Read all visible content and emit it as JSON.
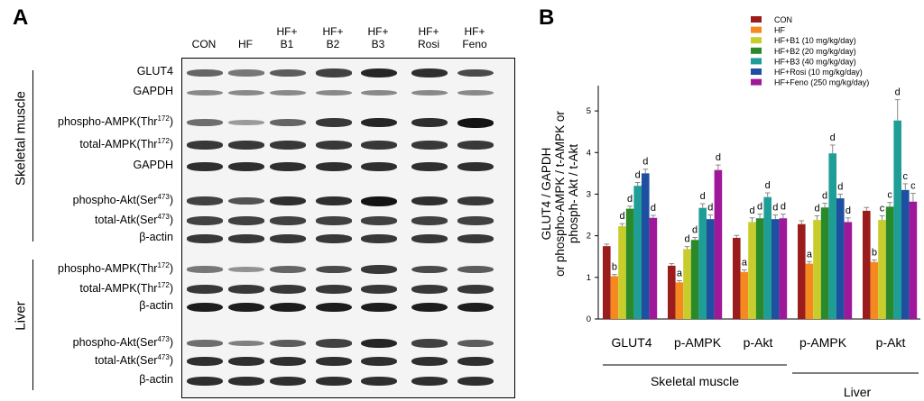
{
  "panel_a": {
    "letter": "A",
    "lanes": [
      {
        "line1": "CON",
        "line2": ""
      },
      {
        "line1": "HF",
        "line2": ""
      },
      {
        "line1": "HF+",
        "line2": "B1"
      },
      {
        "line1": "HF+",
        "line2": "B2"
      },
      {
        "line1": "HF+",
        "line2": "B3"
      },
      {
        "line1": "HF+",
        "line2": "Rosi"
      },
      {
        "line1": "HF+",
        "line2": "Feno"
      }
    ],
    "tissues": [
      "Skeletal muscle",
      "Liver"
    ],
    "rows": [
      {
        "name": "GLUT4",
        "sup": "",
        "tail": "",
        "intensity": [
          0.55,
          0.45,
          0.6,
          0.75,
          0.9,
          0.85,
          0.7
        ]
      },
      {
        "name": "GAPDH",
        "sup": "",
        "tail": "",
        "intensity": [
          0.35,
          0.35,
          0.35,
          0.35,
          0.35,
          0.35,
          0.35
        ]
      },
      {
        "name": "phospho-AMPK(Thr",
        "sup": "172",
        "tail": ")",
        "intensity": [
          0.5,
          0.25,
          0.55,
          0.8,
          0.9,
          0.85,
          1.0
        ]
      },
      {
        "name": "total-AMPK(Thr",
        "sup": "172",
        "tail": ")",
        "intensity": [
          0.8,
          0.8,
          0.8,
          0.8,
          0.8,
          0.8,
          0.8
        ]
      },
      {
        "name": "GAPDH",
        "sup": "",
        "tail": "",
        "intensity": [
          0.85,
          0.85,
          0.85,
          0.85,
          0.85,
          0.85,
          0.85
        ]
      },
      {
        "name": "phospho-Akt(Ser",
        "sup": "473",
        "tail": ")",
        "intensity": [
          0.75,
          0.65,
          0.85,
          0.85,
          1.0,
          0.85,
          0.8
        ]
      },
      {
        "name": "total-Atk(Ser",
        "sup": "473",
        "tail": ")",
        "intensity": [
          0.75,
          0.75,
          0.75,
          0.75,
          0.75,
          0.75,
          0.75
        ]
      },
      {
        "name": "β-actin",
        "sup": "",
        "tail": "",
        "intensity": [
          0.8,
          0.8,
          0.8,
          0.8,
          0.8,
          0.8,
          0.8
        ]
      },
      {
        "name": "phospho-AMPK(Thr",
        "sup": "172",
        "tail": ")",
        "intensity": [
          0.45,
          0.3,
          0.55,
          0.7,
          0.8,
          0.7,
          0.6
        ]
      },
      {
        "name": "total-AMPK(Thr",
        "sup": "172",
        "tail": ")",
        "intensity": [
          0.8,
          0.8,
          0.8,
          0.8,
          0.8,
          0.8,
          0.8
        ]
      },
      {
        "name": "β-actin",
        "sup": "",
        "tail": "",
        "intensity": [
          0.95,
          0.95,
          0.95,
          0.95,
          0.95,
          0.95,
          0.95
        ]
      },
      {
        "name": "phospho-Akt(Ser",
        "sup": "473",
        "tail": ")",
        "intensity": [
          0.5,
          0.4,
          0.6,
          0.75,
          0.9,
          0.75,
          0.6
        ]
      },
      {
        "name": "total-Atk(Ser",
        "sup": "473",
        "tail": ")",
        "intensity": [
          0.85,
          0.85,
          0.85,
          0.85,
          0.85,
          0.85,
          0.85
        ]
      },
      {
        "name": "β-actin",
        "sup": "",
        "tail": "",
        "intensity": [
          0.85,
          0.85,
          0.85,
          0.85,
          0.85,
          0.85,
          0.85
        ]
      }
    ]
  },
  "chart_data": {
    "type": "bar",
    "panel_letter": "B",
    "ylabel_lines": [
      "GLUT4 / GAPDH",
      "or phospho-AMPK / t-AMPK or",
      "phosph- Akt / t-Akt"
    ],
    "ylim": [
      0,
      5.5
    ],
    "yticks": [
      0,
      1,
      2,
      3,
      4,
      5
    ],
    "categories": [
      "GLUT4",
      "p-AMPK",
      "p-Akt",
      "p-AMPK",
      "p-Akt"
    ],
    "groups": [
      {
        "label": "Skeletal muscle",
        "from": 0,
        "to": 2
      },
      {
        "label": "Liver",
        "from": 3,
        "to": 4
      }
    ],
    "legend_position": "top-center",
    "grid": false,
    "series": [
      {
        "name": "CON",
        "color": "#9b1c1c",
        "values": [
          1.75,
          1.28,
          1.95,
          2.28,
          2.6
        ],
        "errors": [
          0.05,
          0.05,
          0.06,
          0.08,
          0.08
        ],
        "labels": [
          "",
          "",
          "",
          "",
          ""
        ]
      },
      {
        "name": "HF",
        "color": "#f5891f",
        "values": [
          1.03,
          0.88,
          1.13,
          1.33,
          1.37
        ],
        "errors": [
          0.04,
          0.04,
          0.05,
          0.05,
          0.05
        ],
        "labels": [
          "b",
          "a",
          "a",
          "a",
          "b"
        ]
      },
      {
        "name": "HF+B1 (10 mg/kg/day)",
        "color": "#c9cd2c",
        "values": [
          2.23,
          1.68,
          2.33,
          2.38,
          2.38
        ],
        "errors": [
          0.06,
          0.06,
          0.1,
          0.1,
          0.1
        ],
        "labels": [
          "d",
          "d",
          "d",
          "d",
          "c"
        ]
      },
      {
        "name": "HF+B2 (20 mg/kg/day)",
        "color": "#2a8a2a",
        "values": [
          2.65,
          1.9,
          2.42,
          2.68,
          2.7
        ],
        "errors": [
          0.06,
          0.06,
          0.1,
          0.1,
          0.1
        ],
        "labels": [
          "d",
          "d",
          "d",
          "d",
          "c"
        ]
      },
      {
        "name": "HF+B3 (40 mg/kg/day)",
        "color": "#1f9e98",
        "values": [
          3.2,
          2.67,
          2.93,
          3.98,
          4.77
        ],
        "errors": [
          0.08,
          0.1,
          0.1,
          0.2,
          0.5
        ],
        "labels": [
          "d",
          "d",
          "d",
          "d",
          "d"
        ]
      },
      {
        "name": "HF+Rosi (10 mg/kg/day)",
        "color": "#1f4fa1",
        "values": [
          3.5,
          2.4,
          2.4,
          2.9,
          3.1
        ],
        "errors": [
          0.1,
          0.1,
          0.1,
          0.1,
          0.15
        ],
        "labels": [
          "d",
          "d",
          "d",
          "d",
          "c"
        ]
      },
      {
        "name": "HF+Feno (250 mg/kg/day)",
        "color": "#a0189a",
        "values": [
          2.43,
          3.58,
          2.42,
          2.33,
          2.82
        ],
        "errors": [
          0.06,
          0.12,
          0.1,
          0.1,
          0.2
        ],
        "labels": [
          "d",
          "d",
          "d",
          "d",
          "c"
        ]
      }
    ]
  }
}
